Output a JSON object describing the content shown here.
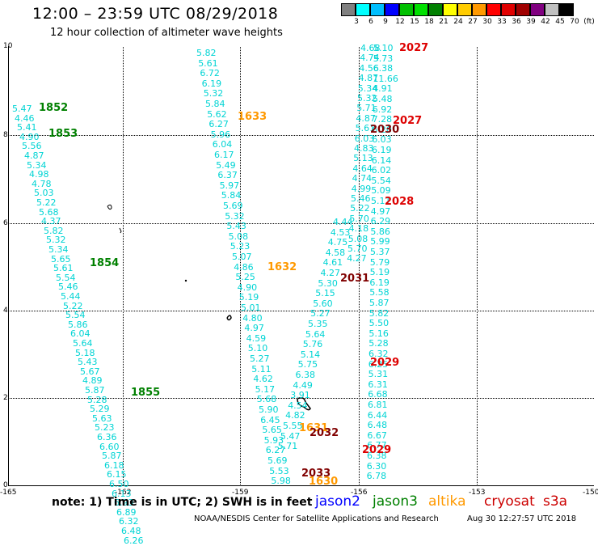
{
  "header": {
    "title": "12:00 – 23:59 UTC 08/29/2018",
    "subtitle": "12 hour collection of altimeter wave heights"
  },
  "colorbar": {
    "labels": [
      "3",
      "6",
      "9",
      "12",
      "15",
      "18",
      "21",
      "24",
      "27",
      "30",
      "33",
      "36",
      "39",
      "42",
      "45",
      "70",
      "(ft)"
    ],
    "colors": [
      "#808080",
      "#00ffff",
      "#00bfff",
      "#0000ff",
      "#00c000",
      "#00e000",
      "#008000",
      "#ffff00",
      "#ffcc00",
      "#ff9900",
      "#ff0000",
      "#e00000",
      "#a00000",
      "#800080",
      "#c0c0c0",
      "#000000"
    ]
  },
  "axes": {
    "y_ticks": [
      "0",
      "2",
      "4",
      "6",
      "8",
      "10"
    ],
    "x_ticks": [
      "-165",
      "-162",
      "-159",
      "-156",
      "-153",
      "-150"
    ]
  },
  "tracks": {
    "a": [
      "5.47",
      "4.46",
      "5.41",
      "4.90",
      "5.56",
      "4.87",
      "5.34",
      "4.98",
      "4.78",
      "5.03",
      "5.22",
      "5.68",
      "4.37",
      "5.82",
      "5.32",
      "5.34",
      "5.65",
      "5.61",
      "5.54",
      "5.46",
      "5.44",
      "5.22",
      "5.54",
      "5.86",
      "6.04",
      "5.64",
      "5.18",
      "5.43",
      "5.67",
      "4.89",
      "5.87",
      "5.28",
      "5.29",
      "5.63",
      "5.23",
      "6.36",
      "6.60",
      "5.87",
      "6.18",
      "6.15",
      "6.50",
      "6.13",
      "6.93",
      "6.89",
      "6.32",
      "6.48",
      "6.26"
    ],
    "b": [
      "5.82",
      "5.61",
      "6.72",
      "6.19",
      "5.32",
      "5.84",
      "5.62",
      "6.27",
      "5.96",
      "6.04",
      "6.17",
      "5.49",
      "6.37",
      "5.97",
      "5.84",
      "5.69",
      "5.32",
      "5.43",
      "5.08",
      "5.23",
      "5.07",
      "4.86",
      "5.25",
      "4.90",
      "5.19",
      "5.01",
      "4.80",
      "4.97",
      "4.59",
      "5.10",
      "5.27",
      "5.11",
      "4.62",
      "5.17",
      "5.68",
      "5.90",
      "6.45",
      "5.65",
      "5.93",
      "6.27",
      "5.69",
      "5.53",
      "5.98"
    ],
    "c": [
      "4.44",
      "4.53",
      "4.75",
      "4.58",
      "4.61",
      "4.27",
      "5.30",
      "5.15",
      "5.60",
      "5.27",
      "5.35",
      "5.64",
      "5.76",
      "5.14",
      "5.75",
      "6.38",
      "4.49",
      "3.91",
      "4.54",
      "4.82",
      "5.55",
      "5.47",
      "5.71"
    ],
    "d": [
      "4.68",
      "4.74",
      "4.56",
      "4.87",
      "5.34",
      "5.32",
      "5.71",
      "4.87",
      "5.61",
      "6.03",
      "4.83",
      "5.13",
      "4.64",
      "4.74",
      "4.99",
      "5.46",
      "5.22",
      "5.70",
      "4.18",
      "5.08",
      "5.70",
      "4.27"
    ],
    "e": [
      "5.10",
      "5.73",
      "6.38",
      "11.66",
      "4.91",
      "5.48",
      "6.92",
      "7.28",
      "6.20",
      "6.03",
      "6.19",
      "6.14",
      "6.02",
      "5.54",
      "5.09",
      "5.11",
      "4.97",
      "6.29",
      "5.86",
      "5.99",
      "5.37",
      "5.79",
      "5.19",
      "6.19",
      "5.58",
      "5.87",
      "5.82",
      "5.50",
      "5.16",
      "5.28",
      "6.32",
      "6.25",
      "5.31",
      "6.31",
      "6.68",
      "6.81",
      "6.44",
      "6.48",
      "6.67",
      "6.77",
      "6.38",
      "6.30",
      "6.78"
    ]
  },
  "times": {
    "t1852": "1852",
    "t1853": "1853",
    "t1854": "1854",
    "t1855": "1855",
    "t1633": "1633",
    "t1632": "1632",
    "t1631": "1631",
    "t1630": "1630",
    "t2027a": "2027",
    "t2027b": "2027",
    "t2028": "2028",
    "t2029a": "2029",
    "t2029b": "2029",
    "t2030": "2030",
    "t2031": "2031",
    "t2032": "2032",
    "t2033": "2033"
  },
  "footer": {
    "note": "note:  1) Time is in UTC;  2) SWH is in feet",
    "sat_jason2": "jason2",
    "sat_jason3": "jason3",
    "sat_altika": "altika",
    "sat_cryosat": "cryosat",
    "sat_s3a": "s3a",
    "credit": "NOAA/NESDIS Center for Satellite Applications and Research",
    "stamp": "Aug 30 12:27:57 UTC 2018"
  },
  "colors": {
    "jason2": "#0000ff",
    "jason3": "#008000",
    "altika": "#ff9900",
    "cryosat": "#cc0000",
    "s3a": "#cc0000",
    "s3a_time": "#dd0000",
    "values": "#00d4d4"
  }
}
